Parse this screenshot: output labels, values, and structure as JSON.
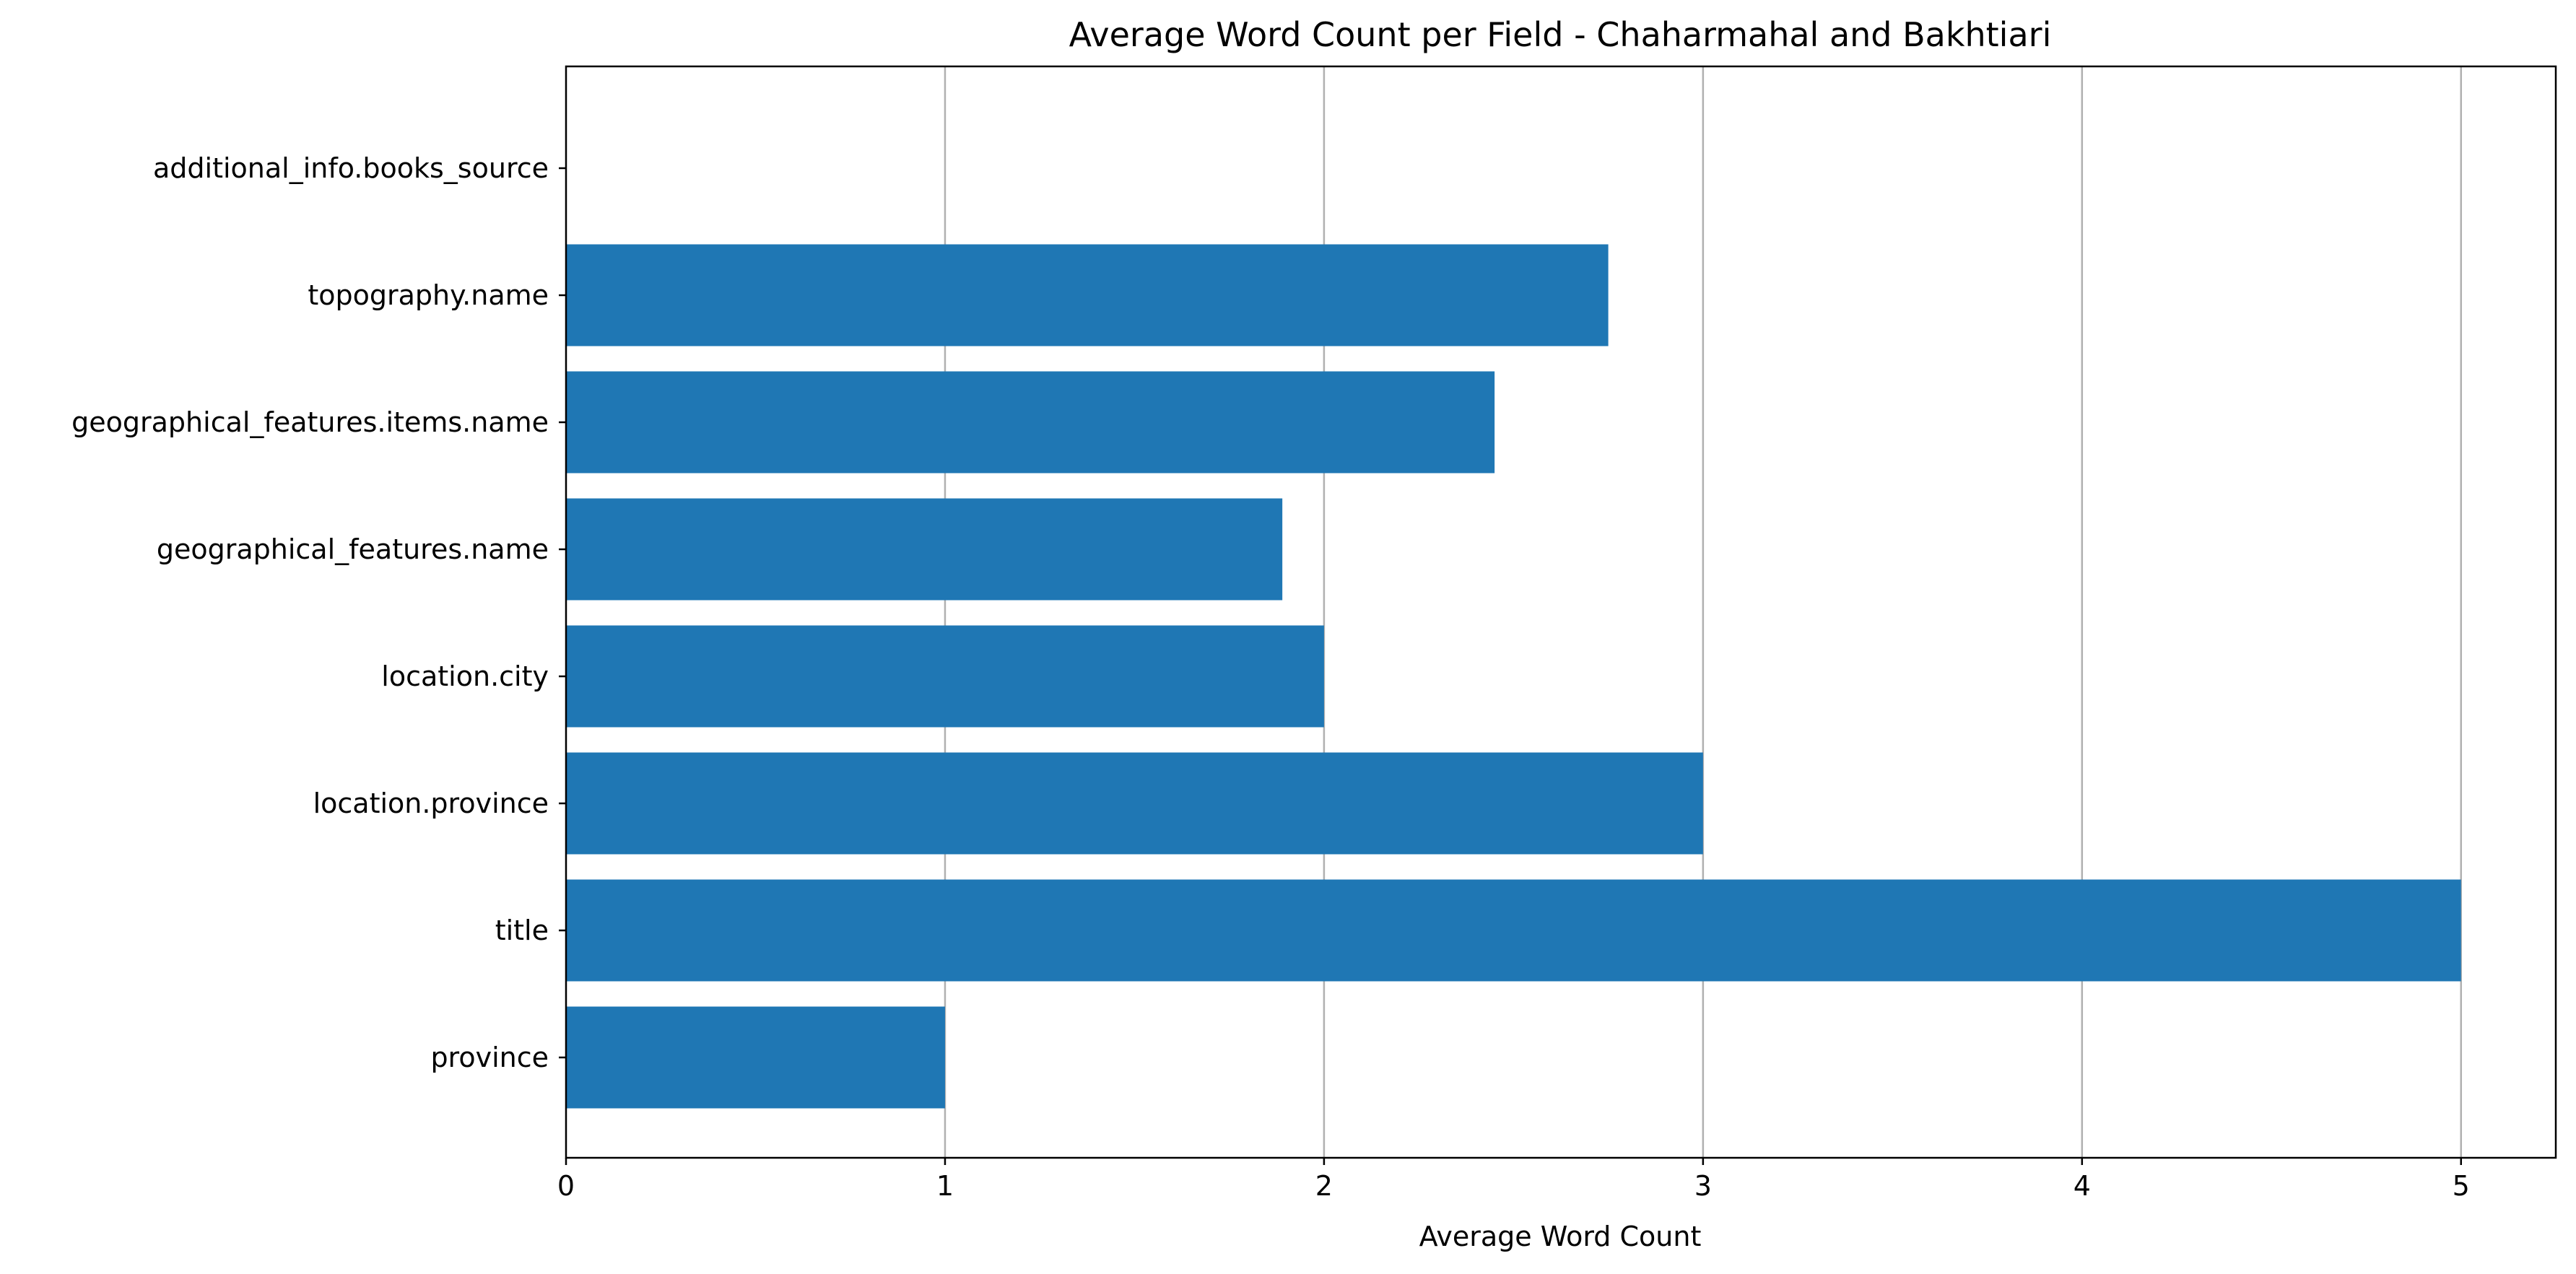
{
  "chart_data": {
    "type": "bar",
    "orientation": "horizontal",
    "title": "Average Word Count per Field - Chaharmahal and Bakhtiari",
    "xlabel": "Average Word Count",
    "ylabel": "",
    "categories": [
      "additional_info.books_source",
      "topography.name",
      "geographical_features.items.name",
      "geographical_features.name",
      "location.city",
      "location.province",
      "title",
      "province"
    ],
    "values": [
      0,
      2.75,
      2.45,
      1.89,
      2.0,
      3.0,
      5.0,
      1.0
    ],
    "xlim": [
      0,
      5.25
    ],
    "xticks": [
      0,
      1,
      2,
      3,
      4,
      5
    ],
    "xtick_labels": [
      "0",
      "1",
      "2",
      "3",
      "4",
      "5"
    ],
    "grid": "x",
    "legend": "none",
    "bar_color": "#1f77b4",
    "grid_color": "#b0b0b0"
  }
}
